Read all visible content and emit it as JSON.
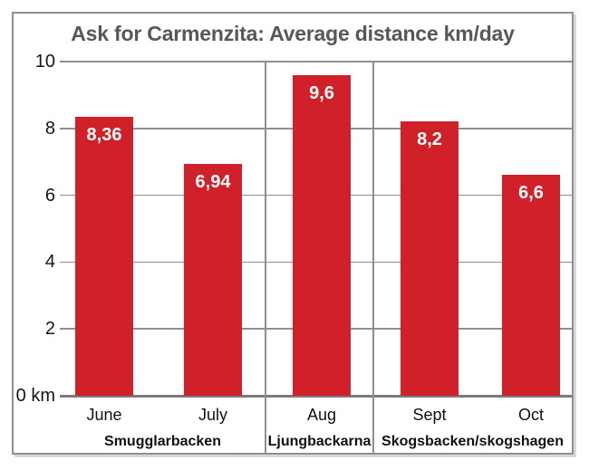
{
  "chart_data": {
    "type": "bar",
    "title": "Ask for Carmenzita: Average distance km/day",
    "categories": [
      "June",
      "July",
      "Aug",
      "Sept",
      "Oct"
    ],
    "values": [
      8.36,
      6.94,
      9.6,
      8.2,
      6.6
    ],
    "value_labels": [
      "8,36",
      "6,94",
      "9,6",
      "8,2",
      "6,6"
    ],
    "groups": [
      {
        "label": "Smugglarbacken",
        "categories": [
          "June",
          "July"
        ]
      },
      {
        "label": "Ljungbackarna",
        "categories": [
          "Aug"
        ]
      },
      {
        "label": "Skogsbacken/skogshagen",
        "categories": [
          "Sept",
          "Oct"
        ]
      }
    ],
    "y_ticks": [
      {
        "value": 10,
        "label": "10"
      },
      {
        "value": 8,
        "label": "8"
      },
      {
        "value": 6,
        "label": "6"
      },
      {
        "value": 4,
        "label": "4"
      },
      {
        "value": 2,
        "label": "2"
      },
      {
        "value": 0,
        "label": "0 km"
      }
    ],
    "ylim": [
      0,
      10
    ],
    "xlabel": "",
    "ylabel": "",
    "grid": true,
    "legend": false,
    "bar_color": "#d0212b",
    "value_label_color": "#ffffff",
    "title_color": "#56575b",
    "grid_color": "#8f8f92",
    "border_color": "#909093"
  }
}
